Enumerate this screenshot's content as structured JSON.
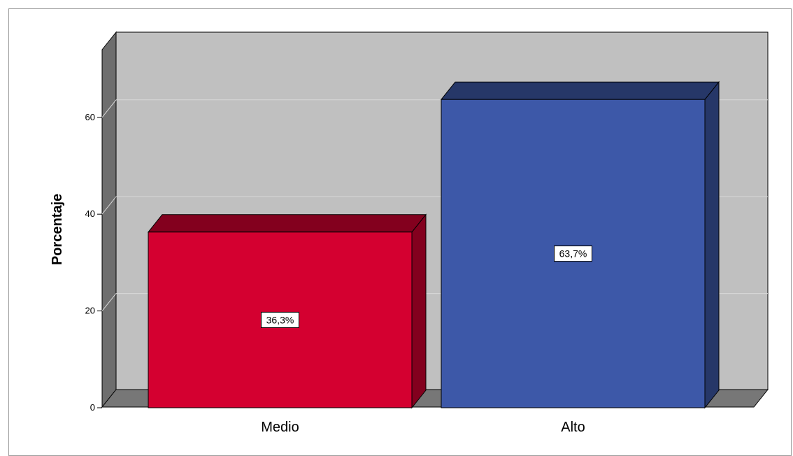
{
  "chart_data": {
    "type": "bar",
    "style": "3d",
    "categories": [
      "Medio",
      "Alto"
    ],
    "values": [
      36.3,
      63.7
    ],
    "data_labels": [
      "36,3%",
      "63,7%"
    ],
    "colors": [
      "#d40030",
      "#3d58a8"
    ],
    "ylabel": "Porcentaje",
    "xlabel": "",
    "title": "",
    "yticks": [
      0,
      20,
      40,
      60
    ],
    "ylim": [
      0,
      69
    ],
    "grid": true,
    "background_color": "#c0c0c0"
  }
}
